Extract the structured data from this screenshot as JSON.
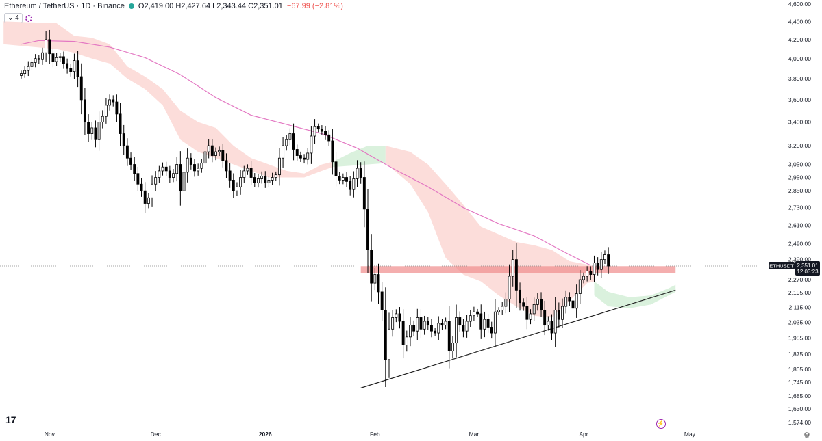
{
  "header": {
    "symbol": "Ethereum / TetherUS · 1D · Binance",
    "ohlc": "O2,419.00 H2,427.64 L2,343.44 C2,351.01",
    "change": "−67.99 (−2.81%)"
  },
  "indicator_badge": "4",
  "price_tag": {
    "ticker": "ETHUSDT",
    "price": "2,351.01",
    "countdown": "12:03:23"
  },
  "colors": {
    "up": "#ffffff",
    "down": "#000000",
    "ma": "#e377c2",
    "cloud_bear": "#fcd9d6",
    "cloud_bull": "#d6f0d9",
    "zone": "#f08c8c",
    "trend": "#222222"
  },
  "chart_data": {
    "type": "candlestick",
    "y_scale": "log",
    "y_range": [
      1574,
      4600
    ],
    "y_ticks": [
      "4,600.00",
      "4,400.00",
      "4,200.00",
      "4,000.00",
      "3,800.00",
      "3,600.00",
      "3,400.00",
      "3,200.00",
      "3,050.00",
      "2,950.00",
      "2,850.00",
      "2,730.00",
      "2,610.00",
      "2,490.00",
      "2,390.00",
      "2,270.00",
      "2,195.00",
      "2,115.00",
      "2,035.00",
      "1,955.00",
      "1,875.00",
      "1,805.00",
      "1,745.00",
      "1,685.00",
      "1,630.00",
      "1,574.00"
    ],
    "x_ticks": [
      "Nov",
      "Dec",
      "2026",
      "Feb",
      "Mar",
      "Apr",
      "May"
    ],
    "x_tick_days": [
      8,
      38,
      69,
      100,
      128,
      159,
      189
    ],
    "x_range_days": [
      -6,
      208
    ],
    "closes": [
      3850,
      3880,
      3920,
      3960,
      4000,
      3990,
      4060,
      4200,
      4050,
      3970,
      4010,
      4020,
      3950,
      3900,
      3870,
      3980,
      3820,
      3600,
      3400,
      3300,
      3350,
      3250,
      3400,
      3450,
      3550,
      3600,
      3580,
      3470,
      3300,
      3200,
      3100,
      3050,
      2980,
      2900,
      2850,
      2760,
      2800,
      2900,
      2950,
      3000,
      3030,
      3000,
      2950,
      2980,
      3050,
      2850,
      2990,
      3100,
      3050,
      3000,
      3020,
      3060,
      3150,
      3200,
      3120,
      3150,
      3160,
      3080,
      3000,
      2930,
      2850,
      2880,
      2950,
      3000,
      3020,
      2950,
      2910,
      2940,
      2960,
      2910,
      2930,
      2950,
      2970,
      3100,
      3200,
      3250,
      3300,
      3170,
      3120,
      3100,
      3090,
      3140,
      3280,
      3360,
      3340,
      3320,
      3290,
      3240,
      3070,
      2960,
      2930,
      2950,
      2920,
      2860,
      2940,
      3020,
      2950,
      2720,
      2450,
      2250,
      2300,
      2200,
      2100,
      1850,
      2000,
      2060,
      2080,
      2040,
      1920,
      1960,
      2020,
      1990,
      2060,
      2000,
      2040,
      2020,
      1990,
      1980,
      2030,
      2020,
      2040,
      1890,
      1930,
      2060,
      2020,
      1990,
      2040,
      2070,
      2090,
      2080,
      2000,
      2050,
      2010,
      1980,
      2090,
      2100,
      2120,
      2160,
      2290,
      2390,
      2210,
      2140,
      2120,
      2050,
      2080,
      2130,
      2160,
      2100,
      2020,
      2040,
      1980,
      2100,
      2050,
      2120,
      2170,
      2150,
      2110,
      2190,
      2270,
      2290,
      2320,
      2300,
      2370,
      2330,
      2390,
      2420,
      2351
    ],
    "ma_points": [
      [
        0,
        4150
      ],
      [
        5,
        4190
      ],
      [
        15,
        4180
      ],
      [
        25,
        4120
      ],
      [
        35,
        4010
      ],
      [
        45,
        3840
      ],
      [
        55,
        3620
      ],
      [
        65,
        3460
      ],
      [
        75,
        3380
      ],
      [
        85,
        3300
      ],
      [
        95,
        3180
      ],
      [
        105,
        3020
      ],
      [
        115,
        2880
      ],
      [
        125,
        2730
      ],
      [
        135,
        2620
      ],
      [
        145,
        2540
      ],
      [
        155,
        2420
      ],
      [
        161,
        2355
      ]
    ],
    "cloud": [
      {
        "type": "bear",
        "upper": [
          [
            -5,
            4400
          ],
          [
            10,
            4380
          ],
          [
            15,
            4240
          ],
          [
            20,
            4220
          ],
          [
            25,
            4150
          ],
          [
            30,
            3920
          ],
          [
            35,
            3820
          ],
          [
            40,
            3700
          ],
          [
            45,
            3500
          ],
          [
            50,
            3400
          ],
          [
            55,
            3350
          ],
          [
            60,
            3200
          ],
          [
            65,
            3100
          ],
          [
            70,
            3050
          ],
          [
            75,
            3000
          ],
          [
            80,
            2980
          ],
          [
            85,
            3050
          ],
          [
            88,
            3070
          ]
        ],
        "lower": [
          [
            -5,
            4150
          ],
          [
            10,
            4100
          ],
          [
            15,
            4060
          ],
          [
            20,
            4000
          ],
          [
            25,
            3950
          ],
          [
            30,
            3800
          ],
          [
            35,
            3700
          ],
          [
            40,
            3550
          ],
          [
            45,
            3250
          ],
          [
            50,
            3150
          ],
          [
            55,
            3100
          ],
          [
            60,
            3050
          ],
          [
            65,
            3000
          ],
          [
            70,
            2950
          ],
          [
            75,
            2950
          ],
          [
            80,
            2950
          ],
          [
            85,
            3000
          ],
          [
            88,
            3030
          ]
        ]
      },
      {
        "type": "bull",
        "upper": [
          [
            88,
            3070
          ],
          [
            93,
            3140
          ],
          [
            98,
            3200
          ],
          [
            103,
            3200
          ]
        ],
        "lower": [
          [
            88,
            3030
          ],
          [
            93,
            3040
          ],
          [
            98,
            3050
          ],
          [
            103,
            3060
          ]
        ]
      },
      {
        "type": "bear",
        "upper": [
          [
            103,
            3200
          ],
          [
            110,
            3150
          ],
          [
            115,
            3050
          ],
          [
            120,
            2900
          ],
          [
            125,
            2750
          ],
          [
            130,
            2600
          ],
          [
            135,
            2550
          ],
          [
            140,
            2500
          ],
          [
            145,
            2480
          ],
          [
            150,
            2450
          ],
          [
            155,
            2380
          ],
          [
            160,
            2360
          ],
          [
            162,
            2350
          ]
        ],
        "lower": [
          [
            103,
            3060
          ],
          [
            110,
            2900
          ],
          [
            115,
            2700
          ],
          [
            120,
            2400
          ],
          [
            125,
            2300
          ],
          [
            130,
            2260
          ],
          [
            135,
            2180
          ],
          [
            140,
            2120
          ],
          [
            145,
            2070
          ],
          [
            150,
            2060
          ],
          [
            155,
            2150
          ],
          [
            160,
            2250
          ],
          [
            162,
            2260
          ]
        ]
      },
      {
        "type": "bull",
        "upper": [
          [
            162,
            2260
          ],
          [
            166,
            2200
          ],
          [
            172,
            2170
          ],
          [
            178,
            2180
          ],
          [
            183,
            2220
          ],
          [
            185,
            2240
          ]
        ],
        "lower": [
          [
            162,
            2180
          ],
          [
            166,
            2120
          ],
          [
            172,
            2110
          ],
          [
            178,
            2130
          ],
          [
            183,
            2180
          ],
          [
            185,
            2200
          ]
        ]
      }
    ],
    "resistance_zone": {
      "low": 2310,
      "high": 2350,
      "from_day": 96,
      "to_day": 185
    },
    "trendline": {
      "from": [
        96,
        1720
      ],
      "to": [
        185,
        2210
      ]
    },
    "last_price": 2351.01
  }
}
